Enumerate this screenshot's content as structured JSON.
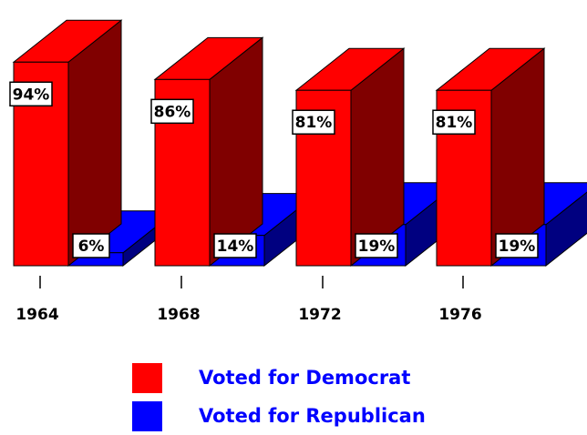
{
  "chart_data": {
    "type": "bar",
    "style": "3d",
    "title": "",
    "categories": [
      "1964",
      "1968",
      "1972",
      "1976"
    ],
    "series": [
      {
        "name": "Voted for Democrat",
        "color": "#ff0000",
        "values": [
          94,
          86,
          81,
          81
        ],
        "labels": [
          "94%",
          "86%",
          "81%",
          "81%"
        ]
      },
      {
        "name": "Voted for Republican",
        "color": "#0000ff",
        "values": [
          6,
          14,
          19,
          19
        ],
        "labels": [
          "6%",
          "14%",
          "19%",
          "19%"
        ]
      }
    ],
    "ylim": [
      0,
      100
    ],
    "grid": false,
    "legend_position": "bottom"
  }
}
